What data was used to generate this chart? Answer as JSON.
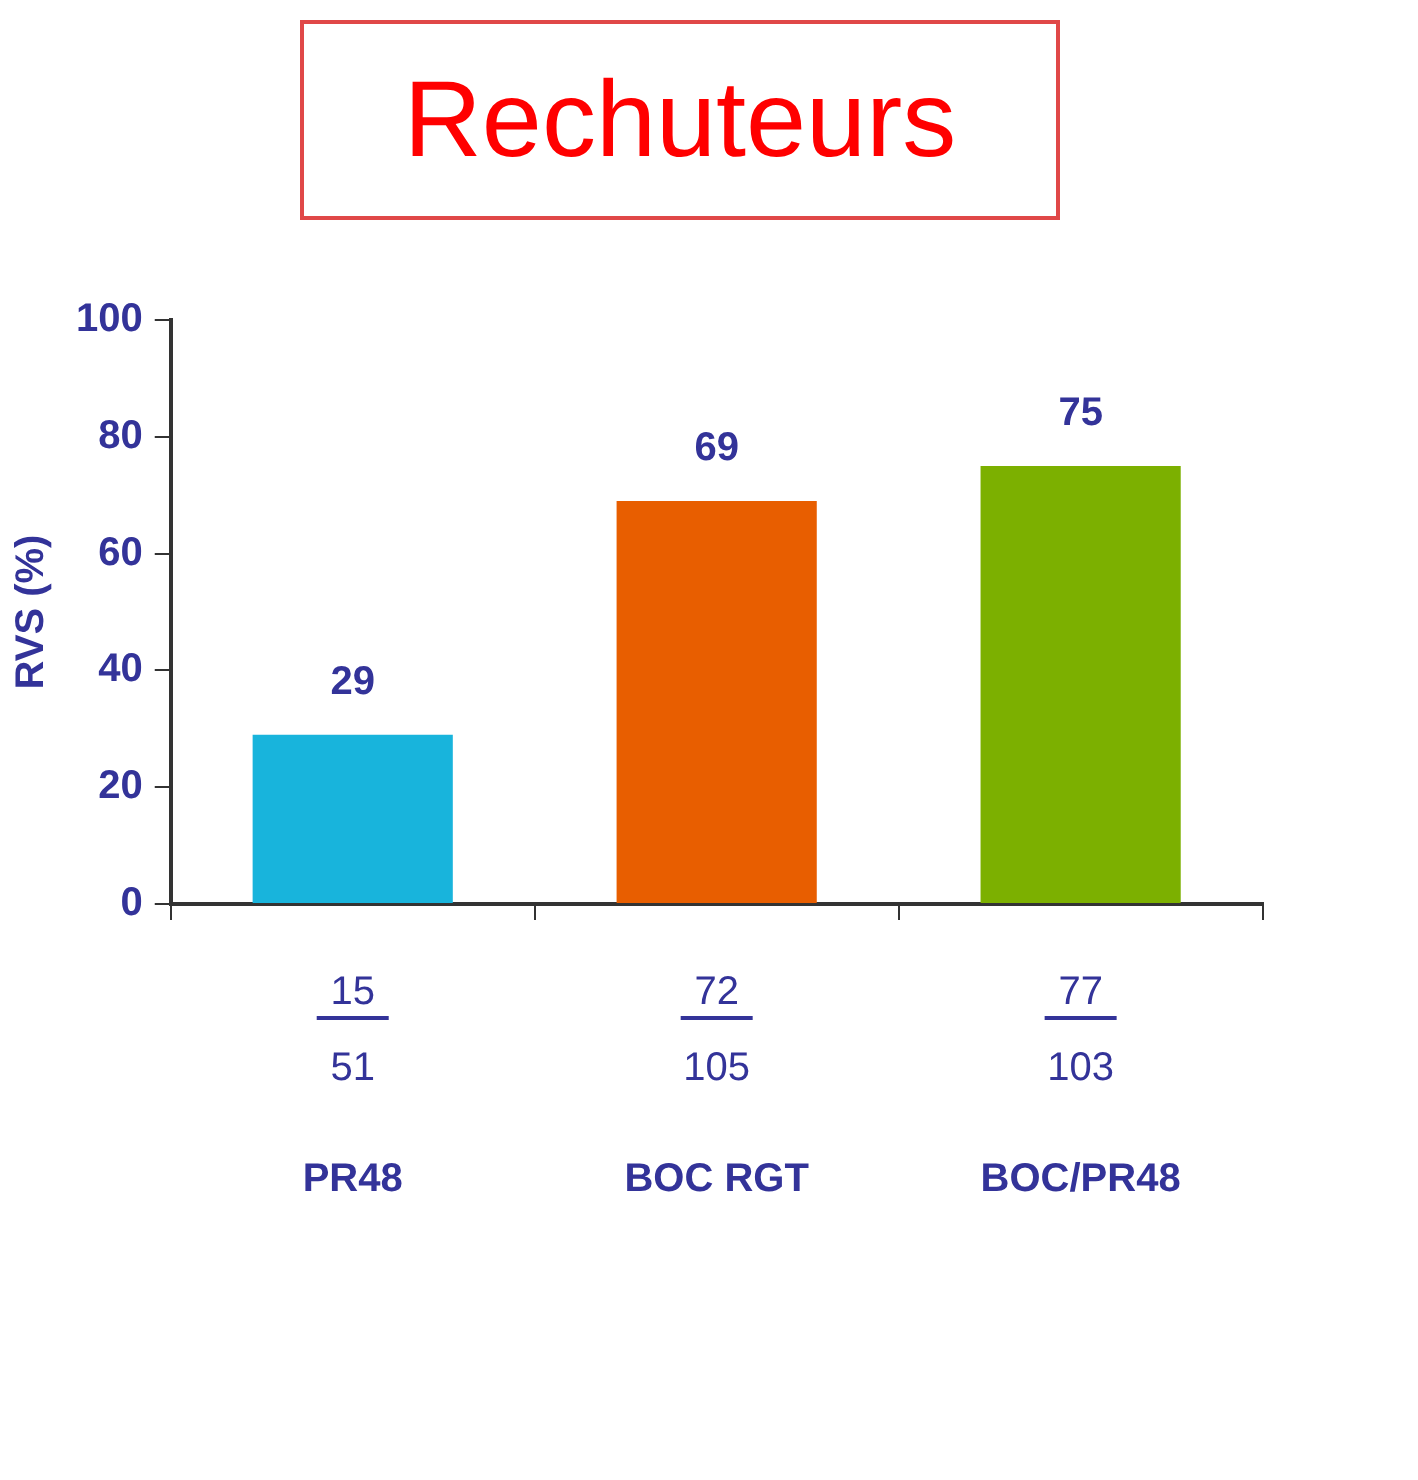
{
  "chart_data": {
    "type": "bar",
    "title": "Rechuteurs",
    "ylabel": "RVS (%)",
    "categories": [
      "PR48",
      "BOC RGT",
      "BOC/PR48"
    ],
    "values": [
      29,
      69,
      75
    ],
    "colors": [
      "#18b4dc",
      "#e85e00",
      "#7cb000"
    ],
    "ylim": [
      0,
      100
    ],
    "yticks": [
      0,
      20,
      40,
      60,
      80,
      100
    ],
    "grid": false,
    "legend": false,
    "data_labels": true,
    "annotations": [
      "15",
      "51",
      "72",
      "105",
      "77",
      "103"
    ]
  }
}
